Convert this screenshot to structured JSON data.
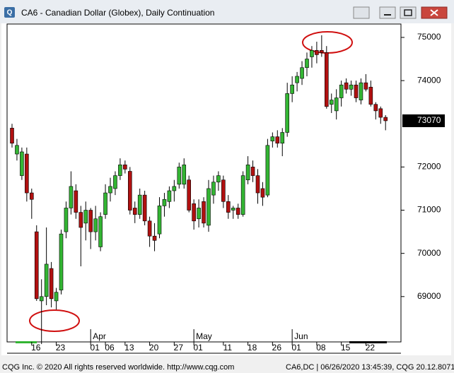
{
  "window": {
    "title": "CA6 - Canadian Dollar (Globex), Daily Continuation"
  },
  "chart_data": {
    "type": "candlestick",
    "categories": [
      null,
      null,
      null,
      null,
      "16",
      null,
      null,
      null,
      null,
      "23",
      null,
      null,
      null,
      null,
      null,
      null,
      "01",
      null,
      null,
      "06",
      null,
      null,
      null,
      "13",
      null,
      null,
      null,
      null,
      "20",
      null,
      null,
      null,
      null,
      "27",
      null,
      null,
      null,
      "01",
      null,
      null,
      null,
      null,
      null,
      "11",
      null,
      null,
      null,
      null,
      "18",
      null,
      null,
      null,
      null,
      "26",
      null,
      null,
      null,
      "01",
      null,
      null,
      null,
      null,
      "08",
      null,
      null,
      null,
      null,
      "15",
      null,
      null,
      null,
      null,
      "22",
      null,
      null,
      null,
      null
    ],
    "month_categories": [
      null,
      null,
      null,
      null,
      null,
      null,
      null,
      null,
      null,
      null,
      null,
      null,
      null,
      null,
      null,
      null,
      "Apr",
      null,
      null,
      null,
      null,
      null,
      null,
      null,
      null,
      null,
      null,
      null,
      null,
      null,
      null,
      null,
      null,
      null,
      null,
      null,
      null,
      "May",
      null,
      null,
      null,
      null,
      null,
      null,
      null,
      null,
      null,
      null,
      null,
      null,
      null,
      null,
      null,
      null,
      null,
      null,
      null,
      "Jun",
      null,
      null,
      null,
      null,
      null,
      null,
      null,
      null,
      null,
      null,
      null,
      null,
      null,
      null,
      null,
      null,
      null,
      null,
      null
    ],
    "open": [
      72900,
      72300,
      71800,
      72300,
      71400,
      70500,
      68900,
      69000,
      69650,
      68900,
      69150,
      70500,
      71050,
      71450,
      70950,
      70700,
      71000,
      70500,
      70150,
      70900,
      71400,
      71500,
      71800,
      72050,
      71900,
      71050,
      70900,
      71350,
      70750,
      70400,
      70450,
      71100,
      71200,
      71450,
      71600,
      71600,
      71700,
      71150,
      70800,
      71200,
      70650,
      71350,
      71650,
      71700,
      71200,
      71000,
      71050,
      70900,
      71700,
      72000,
      71800,
      71500,
      71350,
      72600,
      72700,
      72550,
      72800,
      73700,
      73950,
      74050,
      74300,
      74550,
      74700,
      74700,
      74650,
      73450,
      73300,
      73600,
      73950,
      73800,
      73900,
      73550,
      73950,
      73850,
      73450,
      73350,
      73150
    ],
    "high": [
      73000,
      72650,
      72450,
      72450,
      71500,
      70650,
      69400,
      70600,
      69800,
      69200,
      70550,
      71200,
      71900,
      71600,
      71100,
      71200,
      71050,
      71100,
      70950,
      71600,
      71750,
      71900,
      72200,
      72150,
      72000,
      71200,
      71500,
      71450,
      70850,
      70700,
      71300,
      71400,
      71550,
      71700,
      72100,
      72200,
      71800,
      71250,
      71250,
      71300,
      71700,
      71800,
      71900,
      71800,
      71350,
      71100,
      71150,
      71900,
      72250,
      72150,
      71950,
      71650,
      72650,
      72800,
      72850,
      72900,
      73950,
      74100,
      74200,
      74450,
      74650,
      74800,
      74900,
      75050,
      74800,
      73700,
      73800,
      74000,
      74050,
      74000,
      74000,
      74050,
      74150,
      74000,
      73500,
      73400,
      73200
    ],
    "low": [
      72450,
      72150,
      71700,
      71200,
      70800,
      68900,
      67900,
      68800,
      68750,
      68700,
      69050,
      70350,
      70900,
      70800,
      69700,
      70300,
      70100,
      70300,
      70050,
      70800,
      71200,
      71350,
      71700,
      71850,
      70900,
      70700,
      70800,
      70650,
      70150,
      70050,
      70350,
      70850,
      71050,
      71200,
      71500,
      71500,
      70950,
      70550,
      70600,
      70600,
      70500,
      71150,
      71450,
      71050,
      70800,
      70800,
      70800,
      70850,
      71600,
      71650,
      71150,
      71100,
      71300,
      72450,
      72450,
      72250,
      72700,
      73500,
      73750,
      73900,
      74100,
      74300,
      74400,
      74550,
      73350,
      73250,
      73100,
      73400,
      73700,
      73650,
      73500,
      73450,
      73750,
      73400,
      73100,
      73000,
      72850
    ],
    "close": [
      72550,
      72500,
      72350,
      71400,
      71250,
      68950,
      69000,
      69750,
      68950,
      69100,
      70450,
      71050,
      71550,
      70950,
      70600,
      71000,
      70500,
      70800,
      70850,
      71400,
      71550,
      71800,
      72050,
      71950,
      71000,
      70900,
      71350,
      70750,
      70400,
      70300,
      71100,
      71250,
      71450,
      71550,
      72000,
      72050,
      71000,
      70750,
      71050,
      70700,
      71500,
      71650,
      71800,
      71200,
      70950,
      71050,
      70900,
      71800,
      72050,
      71800,
      71400,
      71300,
      72500,
      72700,
      72550,
      72800,
      73700,
      73900,
      74100,
      74300,
      74500,
      74700,
      74600,
      74650,
      73400,
      73550,
      73600,
      73900,
      73800,
      73900,
      73600,
      73950,
      73800,
      73450,
      73300,
      73150,
      73070
    ],
    "up_color": "#33b533",
    "down_color": "#b01010",
    "ylim": [
      67950,
      75310
    ],
    "yticks": [
      69000,
      70000,
      71000,
      72000,
      74000,
      75000
    ]
  },
  "footer": {
    "copyright": "CQG Inc. © 2020 All rights reserved worldwide. http://www.cqg.com",
    "status": "CA6,DC | 06/26/2020 13:45:39, CQG 20.12.8071"
  }
}
